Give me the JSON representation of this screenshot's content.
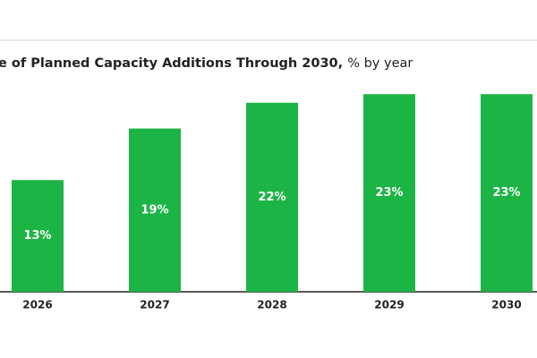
{
  "chart_data": {
    "type": "bar",
    "title": "e of Planned Capacity Additions Through 2030,",
    "subtitle": "% by year",
    "categories": [
      "2026",
      "2027",
      "2028",
      "2029",
      "2030"
    ],
    "values": [
      13,
      19,
      22,
      23,
      23
    ],
    "value_labels": [
      "13%",
      "19%",
      "22%",
      "23%",
      "23%"
    ],
    "color": "#1db446"
  }
}
